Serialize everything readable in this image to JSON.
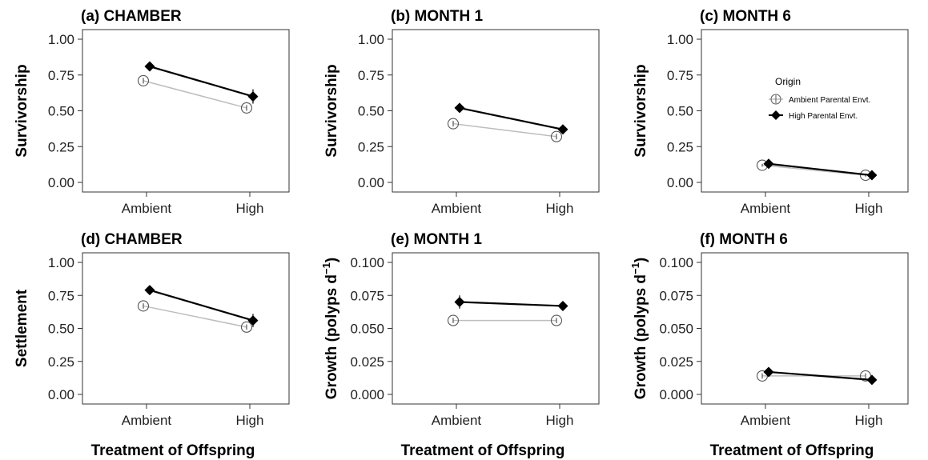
{
  "figure": {
    "x_axis_label": "Treatment of Offspring",
    "legend": {
      "title": "Origin",
      "items": [
        "Ambient Parental Envt.",
        "High Parental Envt."
      ],
      "placement": "top-right of panel (c)"
    },
    "colors": {
      "ambient_line": "#bdbdbd",
      "ambient_marker_stroke": "#555555",
      "high_line": "#000000"
    }
  },
  "chart_data": [
    {
      "type": "line",
      "title": "(a) CHAMBER",
      "ylabel": "Survivorship",
      "xlabel": "",
      "categories": [
        "Ambient",
        "High"
      ],
      "ylim": [
        0,
        1.0
      ],
      "yticks": [
        "0.00",
        "0.25",
        "0.50",
        "0.75",
        "1.00"
      ],
      "grid": false,
      "series": [
        {
          "name": "Ambient Parental Envt.",
          "values": [
            0.71,
            0.52
          ],
          "err": [
            0.02,
            0.02
          ]
        },
        {
          "name": "High Parental Envt.",
          "values": [
            0.81,
            0.6
          ],
          "err": [
            0.02,
            0.05
          ]
        }
      ]
    },
    {
      "type": "line",
      "title": "(b) MONTH 1",
      "ylabel": "Survivorship",
      "xlabel": "",
      "categories": [
        "Ambient",
        "High"
      ],
      "ylim": [
        0,
        1.0
      ],
      "yticks": [
        "0.00",
        "0.25",
        "0.50",
        "0.75",
        "1.00"
      ],
      "grid": false,
      "series": [
        {
          "name": "Ambient Parental Envt.",
          "values": [
            0.41,
            0.32
          ],
          "err": [
            0.02,
            0.02
          ]
        },
        {
          "name": "High Parental Envt.",
          "values": [
            0.52,
            0.37
          ],
          "err": [
            0.02,
            0.02
          ]
        }
      ]
    },
    {
      "type": "line",
      "title": "(c) MONTH 6",
      "ylabel": "Survivorship",
      "xlabel": "",
      "categories": [
        "Ambient",
        "High"
      ],
      "ylim": [
        0,
        1.0
      ],
      "yticks": [
        "0.00",
        "0.25",
        "0.50",
        "0.75",
        "1.00"
      ],
      "grid": false,
      "series": [
        {
          "name": "Ambient Parental Envt.",
          "values": [
            0.12,
            0.05
          ],
          "err": [
            0.01,
            0.01
          ]
        },
        {
          "name": "High Parental Envt.",
          "values": [
            0.13,
            0.05
          ],
          "err": [
            0.01,
            0.01
          ]
        }
      ]
    },
    {
      "type": "line",
      "title": "(d) CHAMBER",
      "ylabel": "Settlement",
      "xlabel": "Treatment of Offspring",
      "categories": [
        "Ambient",
        "High"
      ],
      "ylim": [
        0,
        1.0
      ],
      "yticks": [
        "0.00",
        "0.25",
        "0.50",
        "0.75",
        "1.00"
      ],
      "grid": false,
      "series": [
        {
          "name": "Ambient Parental Envt.",
          "values": [
            0.67,
            0.51
          ],
          "err": [
            0.02,
            0.02
          ]
        },
        {
          "name": "High Parental Envt.",
          "values": [
            0.79,
            0.56
          ],
          "err": [
            0.02,
            0.05
          ]
        }
      ]
    },
    {
      "type": "line",
      "title": "(e) MONTH 1",
      "ylabel": "Growth  (polyps d",
      "ylabel_sup": "−1",
      "ylabel_suffix": ")",
      "xlabel": "Treatment of Offspring",
      "categories": [
        "Ambient",
        "High"
      ],
      "ylim": [
        0,
        0.1
      ],
      "yticks": [
        "0.000",
        "0.025",
        "0.050",
        "0.075",
        "0.100"
      ],
      "grid": false,
      "series": [
        {
          "name": "Ambient Parental Envt.",
          "values": [
            0.056,
            0.056
          ],
          "err": [
            0.002,
            0.002
          ]
        },
        {
          "name": "High Parental Envt.",
          "values": [
            0.07,
            0.067
          ],
          "err": [
            0.005,
            0.003
          ]
        }
      ]
    },
    {
      "type": "line",
      "title": "(f) MONTH 6",
      "ylabel": "Growth  (polyps d",
      "ylabel_sup": "−1",
      "ylabel_suffix": ")",
      "xlabel": "Treatment of Offspring",
      "categories": [
        "Ambient",
        "High"
      ],
      "ylim": [
        0,
        0.1
      ],
      "yticks": [
        "0.000",
        "0.025",
        "0.050",
        "0.075",
        "0.100"
      ],
      "grid": false,
      "series": [
        {
          "name": "Ambient Parental Envt.",
          "values": [
            0.014,
            0.014
          ],
          "err": [
            0.002,
            0.002
          ]
        },
        {
          "name": "High Parental Envt.",
          "values": [
            0.017,
            0.011
          ],
          "err": [
            0.002,
            0.003
          ]
        }
      ]
    }
  ]
}
